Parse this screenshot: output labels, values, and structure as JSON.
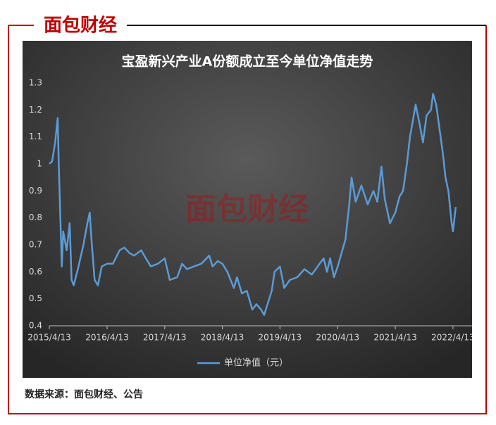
{
  "logo": "面包财经",
  "source": "数据来源：面包财经、公告",
  "chart_data": {
    "type": "line",
    "title": "宝盈新兴产业A份额成立至今单位净值走势",
    "watermark": "面包财经",
    "x": [
      "2015/4/13",
      "2015/5/1",
      "2015/5/20",
      "2015/6/5",
      "2015/6/12",
      "2015/7/1",
      "2015/7/10",
      "2015/8/1",
      "2015/8/20",
      "2015/9/1",
      "2015/9/15",
      "2015/10/15",
      "2015/11/15",
      "2015/12/10",
      "2015/12/25",
      "2016/1/5",
      "2016/1/25",
      "2016/2/15",
      "2016/3/10",
      "2016/4/13",
      "2016/5/20",
      "2016/7/1",
      "2016/8/1",
      "2016/9/1",
      "2016/10/1",
      "2016/11/15",
      "2016/12/15",
      "2017/1/15",
      "2017/3/1",
      "2017/4/13",
      "2017/5/15",
      "2017/7/1",
      "2017/8/1",
      "2017/9/1",
      "2017/10/15",
      "2017/12/1",
      "2018/1/20",
      "2018/2/10",
      "2018/3/15",
      "2018/4/13",
      "2018/5/15",
      "2018/6/25",
      "2018/7/15",
      "2018/8/15",
      "2018/9/15",
      "2018/10/20",
      "2018/11/15",
      "2018/12/15",
      "2019/1/3",
      "2019/2/20",
      "2019/3/10",
      "2019/4/13",
      "2019/5/10",
      "2019/6/15",
      "2019/8/1",
      "2019/9/15",
      "2019/11/1",
      "2019/12/20",
      "2020/1/15",
      "2020/2/5",
      "2020/2/25",
      "2020/3/20",
      "2020/4/13",
      "2020/6/1",
      "2020/6/25",
      "2020/7/10",
      "2020/8/5",
      "2020/9/10",
      "2020/10/20",
      "2020/11/25",
      "2020/12/20",
      "2021/1/15",
      "2021/2/5",
      "2021/3/10",
      "2021/4/13",
      "2021/5/10",
      "2021/6/1",
      "2021/6/25",
      "2021/7/15",
      "2021/8/20",
      "2021/9/13",
      "2021/10/5",
      "2021/10/28",
      "2021/11/25",
      "2021/12/8",
      "2021/12/28",
      "2022/1/25",
      "2022/2/10",
      "2022/2/25",
      "2022/3/15",
      "2022/4/5",
      "2022/4/13",
      "2022/5/1"
    ],
    "series": [
      {
        "name": "单位净值（元）",
        "color": "#5b9bd5",
        "values": [
          1.0,
          1.01,
          1.08,
          1.17,
          1.0,
          0.62,
          0.75,
          0.68,
          0.78,
          0.57,
          0.55,
          0.62,
          0.7,
          0.78,
          0.82,
          0.72,
          0.57,
          0.55,
          0.62,
          0.63,
          0.63,
          0.68,
          0.69,
          0.67,
          0.66,
          0.68,
          0.65,
          0.62,
          0.63,
          0.65,
          0.57,
          0.58,
          0.63,
          0.61,
          0.62,
          0.63,
          0.66,
          0.62,
          0.64,
          0.63,
          0.6,
          0.54,
          0.58,
          0.52,
          0.53,
          0.46,
          0.48,
          0.46,
          0.44,
          0.53,
          0.6,
          0.62,
          0.54,
          0.57,
          0.58,
          0.61,
          0.59,
          0.63,
          0.65,
          0.6,
          0.65,
          0.58,
          0.62,
          0.72,
          0.85,
          0.95,
          0.86,
          0.92,
          0.85,
          0.9,
          0.86,
          0.99,
          0.87,
          0.78,
          0.82,
          0.88,
          0.9,
          1.0,
          1.1,
          1.22,
          1.15,
          1.08,
          1.18,
          1.2,
          1.26,
          1.22,
          1.1,
          1.03,
          0.95,
          0.9,
          0.78,
          0.75,
          0.84
        ]
      }
    ],
    "xlim": [
      "2015/4/13",
      "2022/5/20"
    ],
    "xticks": [
      "2015/4/13",
      "2016/4/13",
      "2017/4/13",
      "2018/4/13",
      "2019/4/13",
      "2020/4/13",
      "2021/4/13",
      "2022/4/13"
    ],
    "ylim": [
      0.4,
      1.3
    ],
    "yticks": [
      0.4,
      0.5,
      0.6,
      0.7,
      0.8,
      0.9,
      1,
      1.1,
      1.2,
      1.3
    ],
    "grid": false,
    "legend": "bottom"
  }
}
